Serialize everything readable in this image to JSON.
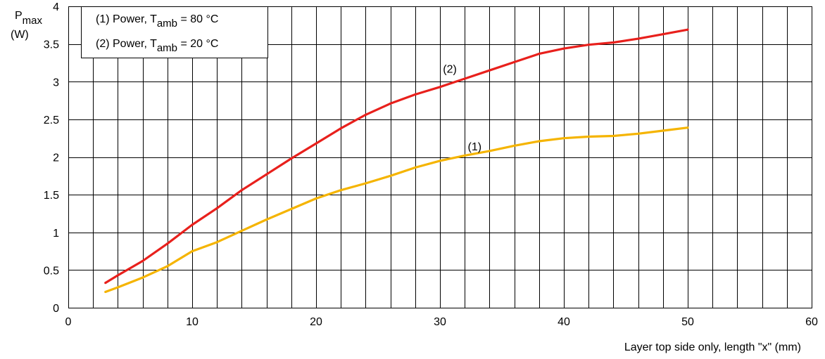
{
  "chart_data": {
    "type": "line",
    "xlabel": "Layer top side only, length \"x\" (mm)",
    "ylabel": {
      "main": "P",
      "sub": "max",
      "unit": "(W)"
    },
    "xlim": [
      0,
      60
    ],
    "ylim": [
      0,
      4
    ],
    "xticks": [
      0,
      10,
      20,
      30,
      40,
      50,
      60
    ],
    "yticks": [
      0,
      0.5,
      1,
      1.5,
      2,
      2.5,
      3,
      3.5,
      4
    ],
    "xtick_labels": [
      "0",
      "10",
      "20",
      "30",
      "40",
      "50",
      "60"
    ],
    "ytick_labels": [
      "0",
      "0.5",
      "1",
      "1.5",
      "2",
      "2.5",
      "3",
      "3.5",
      "4"
    ],
    "x_minor_step": 2,
    "grid": true,
    "legend": {
      "placement": "top-left",
      "entries": [
        {
          "prefix": "(1) Power, T",
          "sub": "amb",
          "suffix": " = 80 °C"
        },
        {
          "prefix": "(2) Power, T",
          "sub": "amb",
          "suffix": " = 20 °C"
        }
      ]
    },
    "series": [
      {
        "label": "(1)",
        "color": "#f5b400",
        "x": [
          3,
          4,
          6,
          8,
          10,
          12,
          14,
          16,
          18,
          20,
          22,
          24,
          26,
          28,
          30,
          32,
          34,
          36,
          38,
          40,
          42,
          44,
          46,
          48,
          50
        ],
        "y": [
          0.21,
          0.27,
          0.4,
          0.55,
          0.75,
          0.87,
          1.02,
          1.17,
          1.31,
          1.45,
          1.56,
          1.65,
          1.75,
          1.86,
          1.95,
          2.02,
          2.08,
          2.15,
          2.21,
          2.25,
          2.27,
          2.28,
          2.31,
          2.35,
          2.39
        ]
      },
      {
        "label": "(2)",
        "color": "#e8201c",
        "x": [
          3,
          4,
          6,
          8,
          10,
          12,
          14,
          16,
          18,
          20,
          22,
          24,
          26,
          28,
          30,
          32,
          34,
          36,
          38,
          40,
          42,
          44,
          46,
          48,
          50
        ],
        "y": [
          0.33,
          0.43,
          0.62,
          0.85,
          1.1,
          1.32,
          1.56,
          1.77,
          1.98,
          2.18,
          2.38,
          2.56,
          2.71,
          2.83,
          2.93,
          3.04,
          3.15,
          3.26,
          3.37,
          3.44,
          3.49,
          3.52,
          3.57,
          3.63,
          3.69
        ]
      }
    ],
    "annotations": [
      {
        "text": "(2)",
        "x": 30.8,
        "y": 3.12
      },
      {
        "text": "(1)",
        "x": 32.8,
        "y": 2.09
      }
    ]
  }
}
